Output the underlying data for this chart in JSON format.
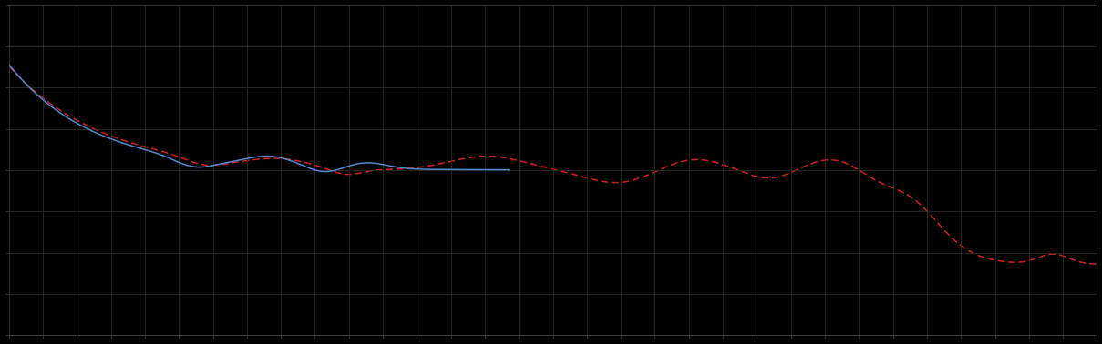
{
  "background_color": "#000000",
  "plot_bg_color": "#000000",
  "grid_color": "#2a2a2a",
  "line1_color": "#5588cc",
  "line2_color": "#cc2222",
  "figsize": [
    12.09,
    3.78
  ],
  "dpi": 100,
  "xlim": [
    0,
    100
  ],
  "ylim": [
    0,
    10
  ],
  "spine_color": "#444444",
  "tick_color": "#444444",
  "n_x_grid": 32,
  "n_y_grid": 8
}
